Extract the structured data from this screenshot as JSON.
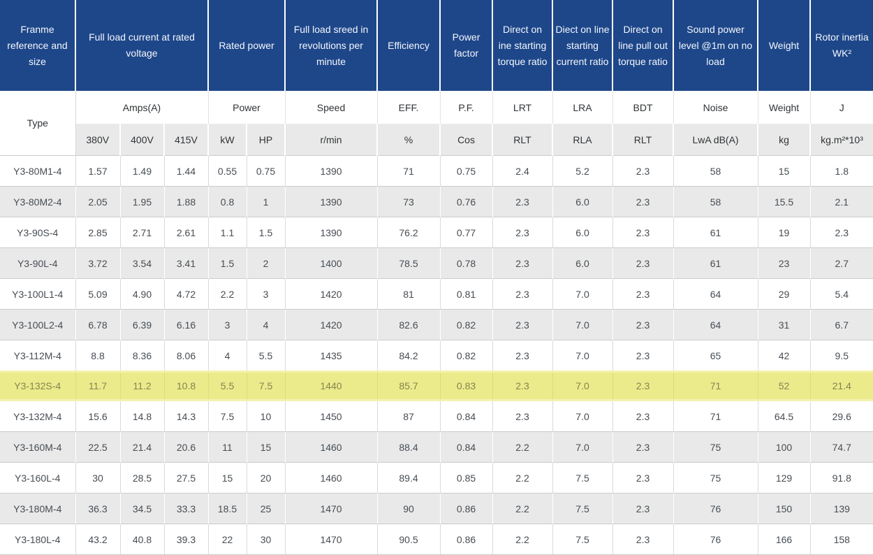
{
  "table": {
    "head1": [
      "Franme reference and size",
      "Full load current at rated voltage",
      "Rated power",
      "Full load sreed in revolutions per minute",
      "Efficiency",
      "Power factor",
      "Direct on ine starting torque ratio",
      "Diect on line starting current ratio",
      "Direct on line pull out torque ratio",
      "Sound power level @1m on no load",
      "Weight",
      "Rotor inertia WK²"
    ],
    "head2": [
      "Type",
      "Amps(A)",
      "Power",
      "Speed",
      "EFF.",
      "P.F.",
      "LRT",
      "LRA",
      "BDT",
      "Noise",
      "Weight",
      "J"
    ],
    "head3": [
      "380V",
      "400V",
      "415V",
      "kW",
      "HP",
      "r/min",
      "%",
      "Cos",
      "RLT",
      "RLA",
      "RLT",
      "LwA dB(A)",
      "kg",
      "kg.m²*10³"
    ],
    "highlighted_type": "Y3-132S-4",
    "colors": {
      "header_bg": "#1e478a",
      "header_text": "#ffffff",
      "alt_row_bg": "#e9e9e9",
      "highlight_bg": "#ebeb8c",
      "highlight_text": "#84844f",
      "border": "#cbcbcb"
    },
    "rows": [
      {
        "highlight": false,
        "cells": [
          "Y3-80M1-4",
          "1.57",
          "1.49",
          "1.44",
          "0.55",
          "0.75",
          "1390",
          "71",
          "0.75",
          "2.4",
          "5.2",
          "2.3",
          "58",
          "15",
          "1.8"
        ]
      },
      {
        "highlight": false,
        "cells": [
          "Y3-80M2-4",
          "2.05",
          "1.95",
          "1.88",
          "0.8",
          "1",
          "1390",
          "73",
          "0.76",
          "2.3",
          "6.0",
          "2.3",
          "58",
          "15.5",
          "2.1"
        ]
      },
      {
        "highlight": false,
        "cells": [
          "Y3-90S-4",
          "2.85",
          "2.71",
          "2.61",
          "1.1",
          "1.5",
          "1390",
          "76.2",
          "0.77",
          "2.3",
          "6.0",
          "2.3",
          "61",
          "19",
          "2.3"
        ]
      },
      {
        "highlight": false,
        "cells": [
          "Y3-90L-4",
          "3.72",
          "3.54",
          "3.41",
          "1.5",
          "2",
          "1400",
          "78.5",
          "0.78",
          "2.3",
          "6.0",
          "2.3",
          "61",
          "23",
          "2.7"
        ]
      },
      {
        "highlight": false,
        "cells": [
          "Y3-100L1-4",
          "5.09",
          "4.90",
          "4.72",
          "2.2",
          "3",
          "1420",
          "81",
          "0.81",
          "2.3",
          "7.0",
          "2.3",
          "64",
          "29",
          "5.4"
        ]
      },
      {
        "highlight": false,
        "cells": [
          "Y3-100L2-4",
          "6.78",
          "6.39",
          "6.16",
          "3",
          "4",
          "1420",
          "82.6",
          "0.82",
          "2.3",
          "7.0",
          "2.3",
          "64",
          "31",
          "6.7"
        ]
      },
      {
        "highlight": false,
        "cells": [
          "Y3-112M-4",
          "8.8",
          "8.36",
          "8.06",
          "4",
          "5.5",
          "1435",
          "84.2",
          "0.82",
          "2.3",
          "7.0",
          "2.3",
          "65",
          "42",
          "9.5"
        ]
      },
      {
        "highlight": true,
        "cells": [
          "Y3-132S-4",
          "11.7",
          "11.2",
          "10.8",
          "5.5",
          "7.5",
          "1440",
          "85.7",
          "0.83",
          "2.3",
          "7.0",
          "2.3",
          "71",
          "52",
          "21.4"
        ]
      },
      {
        "highlight": false,
        "cells": [
          "Y3-132M-4",
          "15.6",
          "14.8",
          "14.3",
          "7.5",
          "10",
          "1450",
          "87",
          "0.84",
          "2.3",
          "7.0",
          "2.3",
          "71",
          "64.5",
          "29.6"
        ]
      },
      {
        "highlight": false,
        "cells": [
          "Y3-160M-4",
          "22.5",
          "21.4",
          "20.6",
          "11",
          "15",
          "1460",
          "88.4",
          "0.84",
          "2.2",
          "7.0",
          "2.3",
          "75",
          "100",
          "74.7"
        ]
      },
      {
        "highlight": false,
        "cells": [
          "Y3-160L-4",
          "30",
          "28.5",
          "27.5",
          "15",
          "20",
          "1460",
          "89.4",
          "0.85",
          "2.2",
          "7.5",
          "2.3",
          "75",
          "129",
          "91.8"
        ]
      },
      {
        "highlight": false,
        "cells": [
          "Y3-180M-4",
          "36.3",
          "34.5",
          "33.3",
          "18.5",
          "25",
          "1470",
          "90",
          "0.86",
          "2.2",
          "7.5",
          "2.3",
          "76",
          "150",
          "139"
        ]
      },
      {
        "highlight": false,
        "cells": [
          "Y3-180L-4",
          "43.2",
          "40.8",
          "39.3",
          "22",
          "30",
          "1470",
          "90.5",
          "0.86",
          "2.2",
          "7.5",
          "2.3",
          "76",
          "166",
          "158"
        ]
      }
    ]
  }
}
